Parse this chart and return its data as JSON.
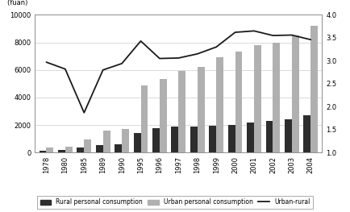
{
  "years": [
    "1978",
    "1980",
    "1985",
    "1989",
    "1990",
    "1995",
    "1996",
    "1997",
    "1998",
    "1999",
    "2000",
    "2001",
    "2002",
    "2003",
    "2004"
  ],
  "rural": [
    138,
    178,
    347,
    544,
    584,
    1434,
    1768,
    1876,
    1910,
    1950,
    2020,
    2200,
    2300,
    2440,
    2720
  ],
  "urban": [
    350,
    420,
    950,
    1600,
    1700,
    4890,
    5350,
    5900,
    6250,
    6900,
    7350,
    7780,
    8000,
    8500,
    9200
  ],
  "ratio": [
    2.97,
    2.82,
    1.87,
    2.8,
    2.94,
    3.43,
    3.05,
    3.06,
    3.15,
    3.3,
    3.62,
    3.65,
    3.55,
    3.56,
    3.46
  ],
  "rural_color": "#2d2d2d",
  "urban_color": "#b0b0b0",
  "line_color": "#1a1a1a",
  "background_color": "#ffffff",
  "grid_color": "#cccccc",
  "ylabel_left": "(Yuan)",
  "ylim_left": [
    0,
    10000
  ],
  "ylim_right": [
    1.0,
    4.0
  ],
  "yticks_left": [
    0,
    2000,
    4000,
    6000,
    8000,
    10000
  ],
  "yticks_right": [
    1.0,
    1.5,
    2.0,
    2.5,
    3.0,
    3.5,
    4.0
  ],
  "legend_rural": "Rural personal consumption",
  "legend_urban": "Urban personal consumption",
  "legend_ratio": "Urban-rural"
}
